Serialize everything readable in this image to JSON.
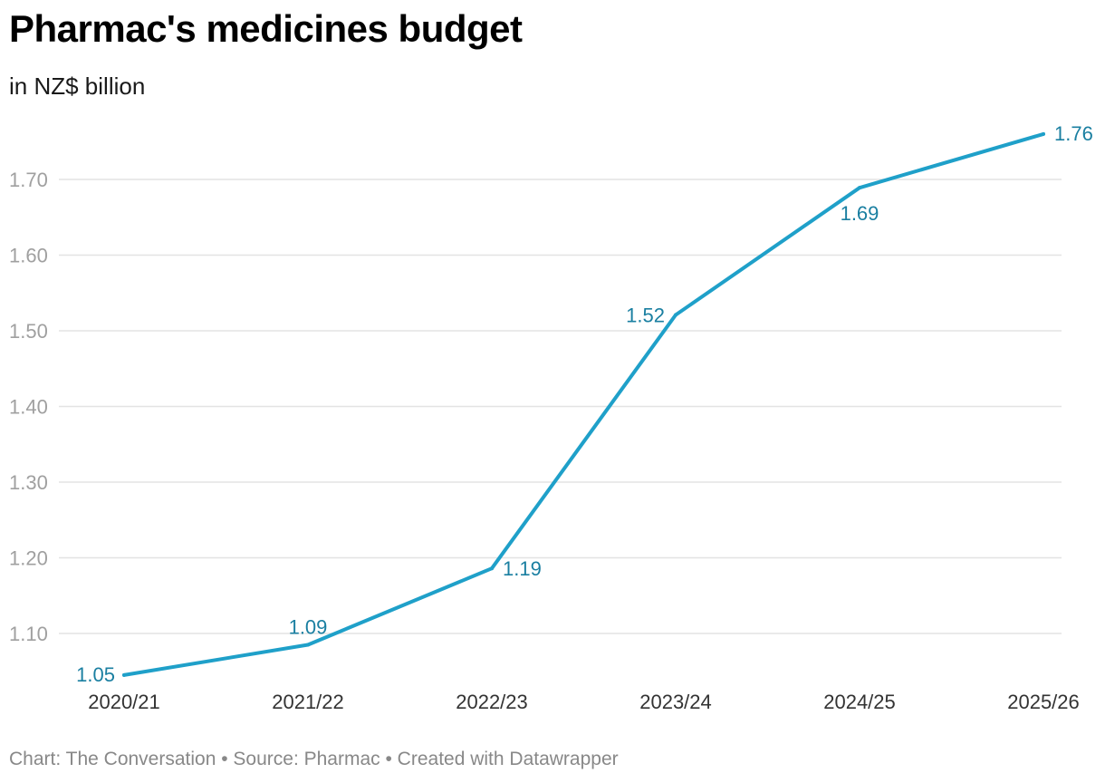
{
  "title": "Pharmac's medicines budget",
  "subtitle": "in NZ$ billion",
  "footer": "Chart: The Conversation • Source: Pharmac • Created with Datawrapper",
  "chart_data": {
    "type": "line",
    "title": "Pharmac's medicines budget",
    "subtitle": "in NZ$ billion",
    "xlabel": "",
    "ylabel": "",
    "categories": [
      "2020/21",
      "2021/22",
      "2022/23",
      "2023/24",
      "2024/25",
      "2025/26"
    ],
    "series": [
      {
        "values": [
          1.045,
          1.085,
          1.186,
          1.521,
          1.689,
          1.76
        ],
        "labels": [
          "1.05",
          "1.09",
          "1.19",
          "1.52",
          "1.69",
          "1.76"
        ],
        "color": "#1fa0c9"
      }
    ],
    "ylim": [
      1.05,
      1.75
    ],
    "yticks": [
      1.1,
      1.2,
      1.3,
      1.4,
      1.5,
      1.6,
      1.7
    ],
    "ytick_labels": [
      "1.10",
      "1.20",
      "1.30",
      "1.40",
      "1.50",
      "1.60",
      "1.70"
    ],
    "grid": true,
    "colors": {
      "line": "#1fa0c9",
      "data_label": "#1a7fa1",
      "tick_label": "#a0a0a0",
      "gridline": "#e3e3e3",
      "x_tick_label": "#333333"
    }
  }
}
